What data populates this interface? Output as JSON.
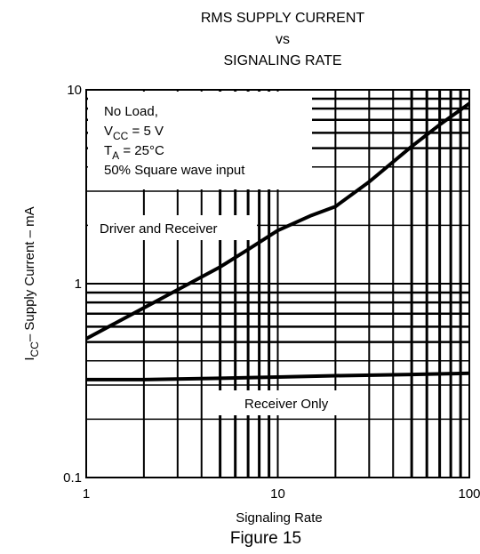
{
  "chart_data": {
    "type": "line",
    "title_lines": [
      "RMS SUPPLY CURRENT",
      "vs",
      "SIGNALING RATE"
    ],
    "xlabel": "Signaling Rate",
    "ylabel_main": "I",
    "ylabel_sub": "CC",
    "ylabel_rest": "– Supply Current – mA",
    "caption": "Figure 15",
    "x_scale": "log",
    "y_scale": "log",
    "xlim": [
      1,
      100
    ],
    "ylim": [
      0.1,
      10
    ],
    "grid": true,
    "x_ticks": [
      {
        "value": 1,
        "label": "1"
      },
      {
        "value": 10,
        "label": "10"
      },
      {
        "value": 100,
        "label": "100"
      }
    ],
    "y_ticks": [
      {
        "value": 0.1,
        "label": "0.1"
      },
      {
        "value": 1,
        "label": "1"
      },
      {
        "value": 10,
        "label": "10"
      }
    ],
    "conditions": [
      {
        "main": "No Load,",
        "sub": "",
        "rest": ""
      },
      {
        "main": "V",
        "sub": "CC",
        "rest": " = 5 V"
      },
      {
        "main": "T",
        "sub": "A",
        "rest": " = 25°C"
      },
      {
        "main": "50% Square wave input",
        "sub": "",
        "rest": ""
      }
    ],
    "series": [
      {
        "name": "Driver and Receiver",
        "x": [
          1,
          2,
          3,
          5,
          7,
          10,
          15,
          20,
          30,
          50,
          70,
          100
        ],
        "y": [
          0.52,
          0.75,
          0.93,
          1.22,
          1.5,
          1.88,
          2.25,
          2.5,
          3.35,
          5.1,
          6.6,
          8.5
        ]
      },
      {
        "name": "Receiver Only",
        "x": [
          1,
          2,
          5,
          10,
          20,
          50,
          100
        ],
        "y": [
          0.32,
          0.32,
          0.325,
          0.33,
          0.335,
          0.34,
          0.345
        ]
      }
    ]
  }
}
